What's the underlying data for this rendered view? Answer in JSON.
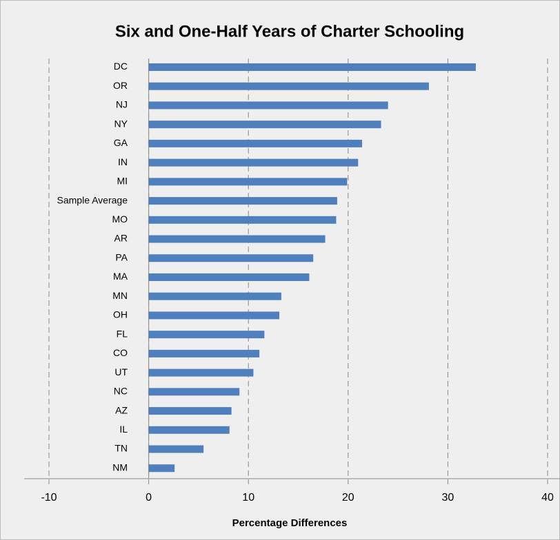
{
  "chart_data": {
    "type": "barh",
    "title": "Six and One-Half Years of Charter Schooling",
    "x_label": "Percentage Differences",
    "categories": [
      "DC",
      "OR",
      "NJ",
      "NY",
      "GA",
      "IN",
      "MI",
      "Sample Average",
      "MO",
      "AR",
      "PA",
      "MA",
      "MN",
      "OH",
      "FL",
      "CO",
      "UT",
      "NC",
      "AZ",
      "IL",
      "TN",
      "NM"
    ],
    "values": [
      32.8,
      28.1,
      24.0,
      23.3,
      21.4,
      21.0,
      19.9,
      18.9,
      18.8,
      17.7,
      16.5,
      16.1,
      13.3,
      13.1,
      11.6,
      11.1,
      10.5,
      9.1,
      8.3,
      8.1,
      5.5,
      2.6
    ],
    "color": "#4f7fbd",
    "xlim": [
      -10,
      40
    ],
    "xticks": [
      -10,
      0,
      10,
      20,
      30,
      40
    ],
    "grid": true
  }
}
